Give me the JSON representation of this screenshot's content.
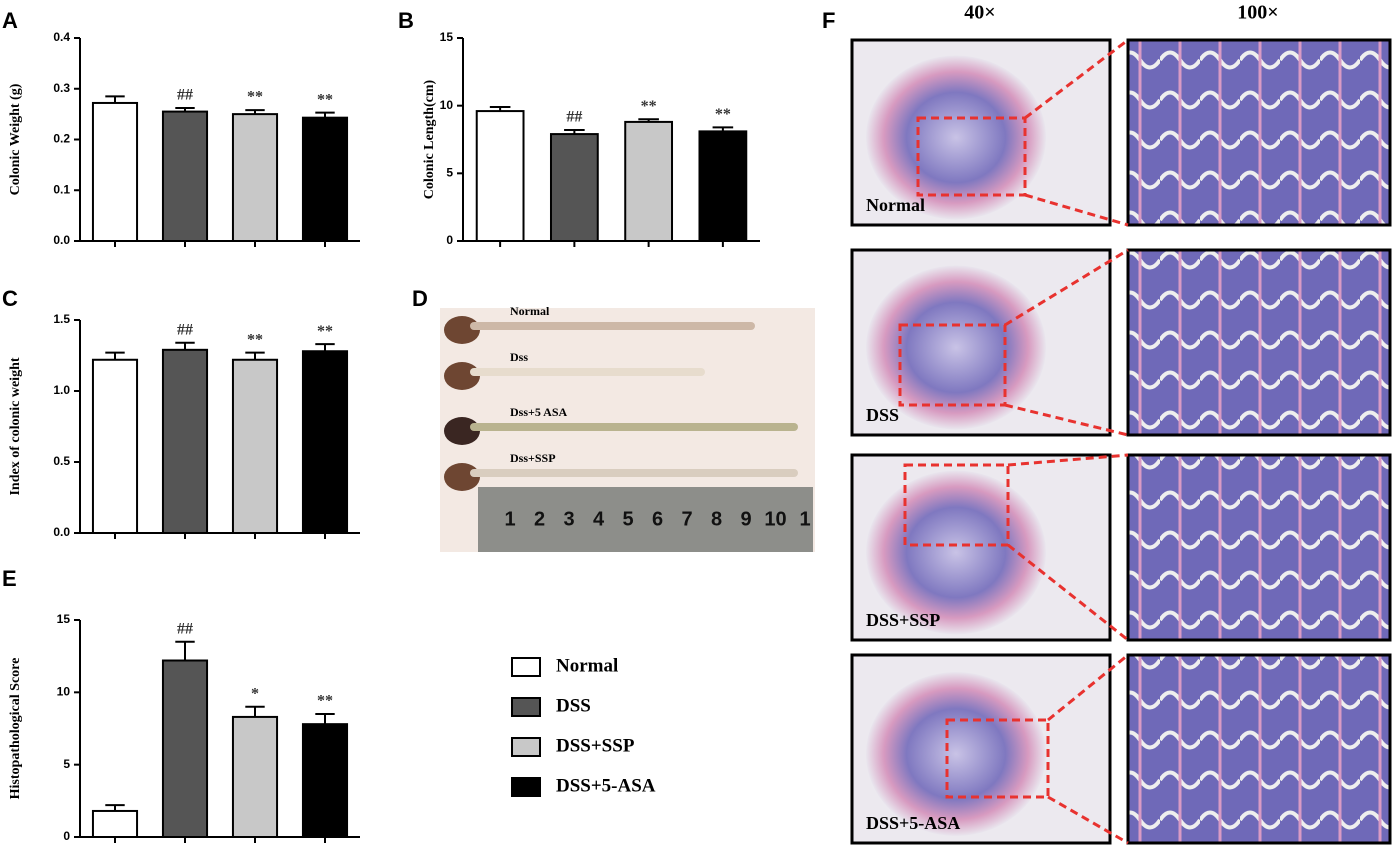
{
  "chart_data": [
    {
      "type": "bar",
      "panel": "A",
      "ylabel": "Colonic Weight (g)",
      "categories": [
        null,
        null,
        null,
        null
      ],
      "values": [
        0.272,
        0.255,
        0.25,
        0.243
      ],
      "errors": [
        0.013,
        0.007,
        0.008,
        0.01
      ],
      "annotations": [
        null,
        "##",
        "**",
        "**"
      ],
      "colors": [
        "#ffffff",
        "#555555",
        "#c8c8c8",
        "#000000"
      ],
      "ylim": [
        0,
        0.4
      ],
      "yticks": [
        {
          "value": 0,
          "label": "0.0"
        },
        0.1,
        0.2,
        0.3,
        0.4
      ]
    },
    {
      "type": "bar",
      "panel": "B",
      "ylabel": "Colonic Length(cm)",
      "categories": [
        null,
        null,
        null,
        null
      ],
      "values": [
        9.6,
        7.9,
        8.8,
        8.1
      ],
      "errors": [
        0.3,
        0.3,
        0.2,
        0.3
      ],
      "annotations": [
        null,
        "##",
        "**",
        "**"
      ],
      "colors": [
        "#ffffff",
        "#555555",
        "#c8c8c8",
        "#000000"
      ],
      "ylim": [
        0,
        15
      ],
      "yticks": [
        0,
        5,
        10,
        15
      ]
    },
    {
      "type": "bar",
      "panel": "C",
      "ylabel": "Index of colonic weight",
      "categories": [
        null,
        null,
        null,
        null
      ],
      "values": [
        1.22,
        1.29,
        1.22,
        1.28
      ],
      "errors": [
        0.05,
        0.05,
        0.05,
        0.05
      ],
      "annotations": [
        null,
        "##",
        "**",
        "**"
      ],
      "colors": [
        "#ffffff",
        "#555555",
        "#c8c8c8",
        "#000000"
      ],
      "ylim": [
        0,
        1.5
      ],
      "yticks": [
        {
          "value": 0,
          "label": "0.0"
        },
        0.5,
        {
          "value": 1,
          "label": "1.0"
        },
        1.5
      ]
    },
    {
      "type": "bar",
      "panel": "E",
      "ylabel": "Histopathological Score",
      "categories": [
        null,
        null,
        null,
        null
      ],
      "values": [
        1.8,
        12.2,
        8.3,
        7.8
      ],
      "errors": [
        0.4,
        1.3,
        0.7,
        0.7
      ],
      "annotations": [
        null,
        "##",
        "*",
        "**"
      ],
      "colors": [
        "#ffffff",
        "#555555",
        "#c8c8c8",
        "#000000"
      ],
      "ylim": [
        0,
        15
      ],
      "yticks": [
        0,
        5,
        10,
        15
      ]
    }
  ],
  "legend": [
    {
      "name": "Normal",
      "color": "#ffffff"
    },
    {
      "name": "DSS",
      "color": "#555555"
    },
    {
      "name": "DSS+SSP",
      "color": "#c8c8c8"
    },
    {
      "name": "DSS+5-ASA",
      "color": "#000000"
    }
  ],
  "panel_d": {
    "panel": "D",
    "sample_labels": [
      "Normal",
      "Dss",
      "Dss+5 ASA",
      "Dss+SSP"
    ],
    "ruler": [
      "1",
      "2",
      "3",
      "4",
      "5",
      "6",
      "7",
      "8",
      "9",
      "10",
      "1"
    ]
  },
  "panel_f": {
    "panel": "F",
    "columns": [
      "40×",
      "100×"
    ],
    "rows": [
      "Normal",
      "DSS",
      "DSS+SSP",
      "DSS+5-ASA"
    ]
  }
}
